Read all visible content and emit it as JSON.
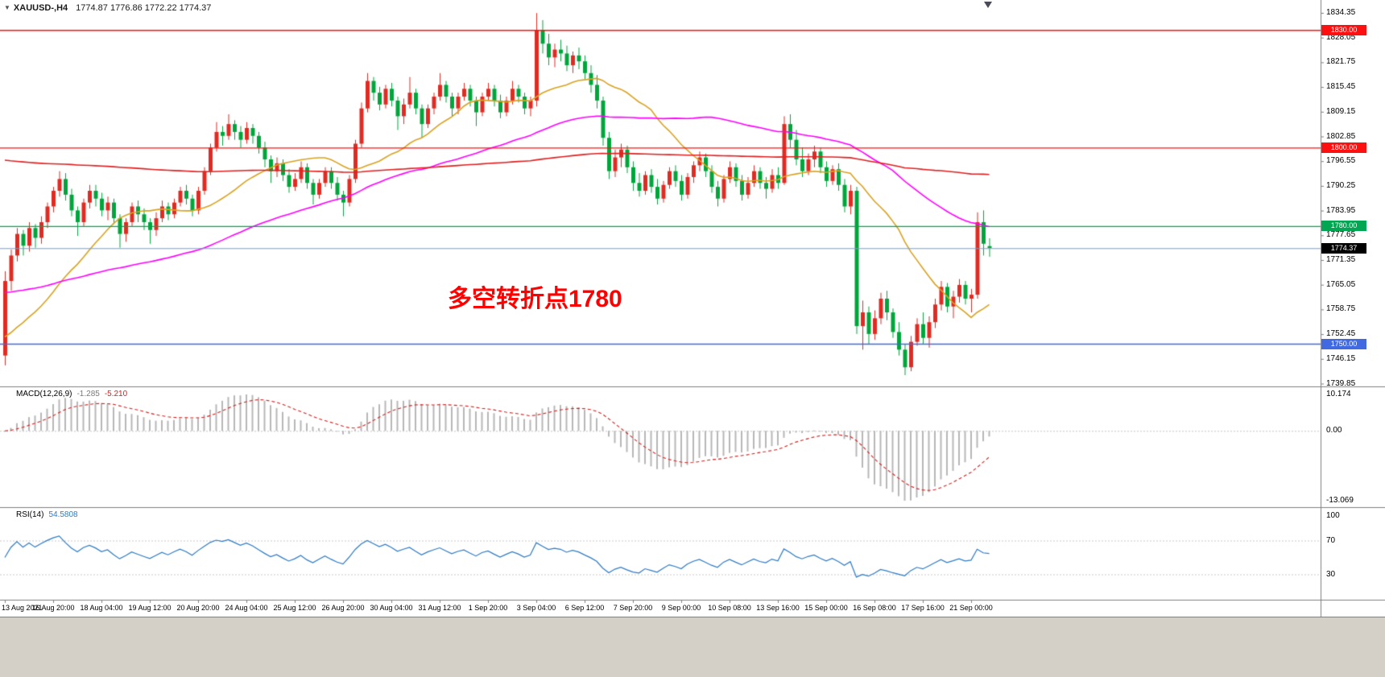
{
  "title": {
    "dropdown_icon": "▼",
    "symbol_period": "XAUUSD-,H4",
    "ohlc_text": "1774.87 1776.86 1772.22 1774.37"
  },
  "colors": {
    "bull": "#e02b22",
    "bear": "#00a63c",
    "background": "#ffffff",
    "separator": "#808080",
    "grid_dotted": "#c8c8c8",
    "axis_text": "#000000",
    "bottom_strip": "#d4d0c8"
  },
  "chart_data": {
    "type": "candlestick",
    "symbol": "XAUUSD-",
    "timeframe": "H4",
    "current_candle": {
      "open": 1774.87,
      "high": 1776.86,
      "low": 1772.22,
      "close": 1774.37
    },
    "price_axis": {
      "top": 1834.35,
      "step": 6.3,
      "labels": [
        "1834.35",
        "1828.05",
        "1821.75",
        "1815.45",
        "1809.15",
        "1802.85",
        "1796.55",
        "1790.25",
        "1783.95",
        "1777.65",
        "1771.35",
        "1765.05",
        "1758.75",
        "1752.45",
        "1746.15",
        "1739.85"
      ]
    },
    "time_axis": {
      "candles_per_label": 8,
      "labels": [
        "13 Aug 2021",
        "16 Aug 20:00",
        "18 Aug 04:00",
        "19 Aug 12:00",
        "20 Aug 20:00",
        "24 Aug 04:00",
        "25 Aug 12:00",
        "26 Aug 20:00",
        "30 Aug 04:00",
        "31 Aug 12:00",
        "1 Sep 20:00",
        "3 Sep 04:00",
        "6 Sep 12:00",
        "7 Sep 20:00",
        "9 Sep 00:00",
        "10 Sep 08:00",
        "13 Sep 16:00",
        "15 Sep 00:00",
        "16 Sep 08:00",
        "17 Sep 16:00",
        "21 Sep 00:00"
      ]
    },
    "horizontal_lines": [
      {
        "price": 1830.0,
        "label": "1830.00",
        "color": "#fe1010"
      },
      {
        "price": 1800.0,
        "label": "1800.00",
        "color": "#fe1010"
      },
      {
        "price": 1780.0,
        "label": "1780.00",
        "color": "#00a651"
      },
      {
        "price": 1750.0,
        "label": "1750.00",
        "color": "#4169e1"
      }
    ],
    "bid_line": {
      "price": 1774.37,
      "label": "1774.37",
      "line_color": "#7f9db9",
      "label_bg": "#000000"
    },
    "moving_averages": [
      {
        "name": "ma-fast",
        "period": 20,
        "start_value": 1751,
        "color": "#d9a321"
      },
      {
        "name": "ma-mid",
        "period": 60,
        "start_value": 1763,
        "color": "#ff00ff"
      },
      {
        "name": "ma-slow",
        "period": 150,
        "start_value": 1797,
        "color": "#e02020"
      }
    ],
    "annotation": {
      "text": "多空转折点1780",
      "color": "#ff0000"
    },
    "indicators": {
      "macd": {
        "title": "MACD(12,26,9)",
        "value_main": "-1.285",
        "value_signal": "-5.210",
        "fast": 12,
        "slow": 26,
        "signal": 9,
        "histogram_color": "#b8b8b8",
        "signal_color": "#d42020",
        "axis_labels": [
          "10.174",
          "0.00",
          "-13.069"
        ]
      },
      "rsi": {
        "title": "RSI(14)",
        "value": "54.5808",
        "period": 14,
        "line_color": "#2e7bc4",
        "levels": [
          70,
          30
        ],
        "axis_labels": [
          "100",
          "70",
          "30"
        ]
      }
    },
    "candles": [
      [
        1747,
        1768.5,
        1744.5,
        1766
      ],
      [
        1766,
        1774,
        1763.5,
        1772.5
      ],
      [
        1772.5,
        1779.5,
        1771,
        1778
      ],
      [
        1778,
        1779,
        1772.5,
        1775
      ],
      [
        1775,
        1781,
        1773.5,
        1779.5
      ],
      [
        1779.5,
        1780.5,
        1774.5,
        1777
      ],
      [
        1777,
        1782.5,
        1775.5,
        1781
      ],
      [
        1781,
        1786,
        1779.5,
        1785
      ],
      [
        1785,
        1790,
        1783.5,
        1789
      ],
      [
        1789,
        1794,
        1787.5,
        1792
      ],
      [
        1792,
        1793.5,
        1786.5,
        1788
      ],
      [
        1788,
        1789.5,
        1782.5,
        1784
      ],
      [
        1784,
        1785,
        1777.5,
        1781
      ],
      [
        1781,
        1787,
        1780,
        1786
      ],
      [
        1786,
        1790.5,
        1784.5,
        1789
      ],
      [
        1789,
        1790.5,
        1785,
        1787
      ],
      [
        1787,
        1788.5,
        1782.5,
        1784
      ],
      [
        1784,
        1787.5,
        1781.5,
        1786
      ],
      [
        1786,
        1787,
        1780.5,
        1782
      ],
      [
        1782,
        1783,
        1774.5,
        1778
      ],
      [
        1778,
        1782,
        1776,
        1781
      ],
      [
        1781,
        1786,
        1780,
        1785
      ],
      [
        1785,
        1786.5,
        1781,
        1783
      ],
      [
        1783,
        1784.5,
        1779,
        1781
      ],
      [
        1781,
        1782,
        1775.5,
        1779
      ],
      [
        1779,
        1783.5,
        1777.5,
        1782
      ],
      [
        1782,
        1786.5,
        1781,
        1785
      ],
      [
        1785,
        1786,
        1781.5,
        1783
      ],
      [
        1783,
        1787,
        1782,
        1786
      ],
      [
        1786,
        1790,
        1785,
        1789
      ],
      [
        1789,
        1790.5,
        1785.5,
        1787
      ],
      [
        1787,
        1788,
        1782.5,
        1784
      ],
      [
        1784,
        1790,
        1783,
        1789
      ],
      [
        1789,
        1795,
        1788,
        1794
      ],
      [
        1794,
        1801,
        1793,
        1800
      ],
      [
        1800,
        1806.5,
        1799,
        1804
      ],
      [
        1804,
        1805.5,
        1800.5,
        1803
      ],
      [
        1803,
        1808.5,
        1802,
        1806
      ],
      [
        1806,
        1807,
        1802,
        1804
      ],
      [
        1804,
        1805.5,
        1800,
        1802
      ],
      [
        1802,
        1806.5,
        1801,
        1805
      ],
      [
        1805,
        1806,
        1801,
        1803
      ],
      [
        1803,
        1804,
        1798.5,
        1800
      ],
      [
        1800,
        1801.5,
        1795,
        1797
      ],
      [
        1797,
        1798,
        1791,
        1794
      ],
      [
        1794,
        1797.5,
        1792.5,
        1796
      ],
      [
        1796,
        1797,
        1791.5,
        1793
      ],
      [
        1793,
        1794.5,
        1788.5,
        1790
      ],
      [
        1790,
        1793.5,
        1789,
        1792
      ],
      [
        1792,
        1796.5,
        1791,
        1795
      ],
      [
        1795,
        1796,
        1789.5,
        1791
      ],
      [
        1791,
        1792,
        1785.5,
        1788
      ],
      [
        1788,
        1792,
        1787,
        1791
      ],
      [
        1791,
        1795,
        1790,
        1794
      ],
      [
        1794,
        1795,
        1789.5,
        1791
      ],
      [
        1791,
        1792.5,
        1786.5,
        1788
      ],
      [
        1788,
        1789,
        1782.5,
        1786
      ],
      [
        1786,
        1793,
        1785,
        1792
      ],
      [
        1792,
        1802,
        1791,
        1801
      ],
      [
        1801,
        1811.5,
        1800,
        1810
      ],
      [
        1810,
        1819,
        1809,
        1817
      ],
      [
        1817,
        1818,
        1812,
        1814
      ],
      [
        1814,
        1815.5,
        1809.5,
        1811
      ],
      [
        1811,
        1816,
        1810,
        1815
      ],
      [
        1815,
        1816.5,
        1810.5,
        1812
      ],
      [
        1812,
        1813,
        1804.5,
        1808
      ],
      [
        1808,
        1812.5,
        1806,
        1811
      ],
      [
        1811,
        1818,
        1810,
        1814
      ],
      [
        1814,
        1815,
        1808.5,
        1810
      ],
      [
        1810,
        1811,
        1802.5,
        1806
      ],
      [
        1806,
        1811,
        1805,
        1810
      ],
      [
        1810,
        1814,
        1808.5,
        1813
      ],
      [
        1813,
        1819,
        1812,
        1816
      ],
      [
        1816,
        1817,
        1811.5,
        1813
      ],
      [
        1813,
        1814,
        1808,
        1810
      ],
      [
        1810,
        1814,
        1808.5,
        1813
      ],
      [
        1813,
        1816.5,
        1812,
        1815
      ],
      [
        1815,
        1816,
        1810.5,
        1812
      ],
      [
        1812,
        1813,
        1805.5,
        1809
      ],
      [
        1809,
        1814,
        1808,
        1813
      ],
      [
        1813,
        1816.5,
        1812,
        1815
      ],
      [
        1815,
        1816,
        1810.5,
        1812
      ],
      [
        1812,
        1813.5,
        1807.5,
        1809
      ],
      [
        1809,
        1813,
        1808,
        1812
      ],
      [
        1812,
        1817,
        1811,
        1815
      ],
      [
        1815,
        1816,
        1811.5,
        1813
      ],
      [
        1813,
        1814,
        1808.5,
        1810
      ],
      [
        1810,
        1813,
        1808,
        1812
      ],
      [
        1812,
        1834.3,
        1810.5,
        1830
      ],
      [
        1830,
        1832.5,
        1824,
        1826.5
      ],
      [
        1826.5,
        1829,
        1821,
        1823
      ],
      [
        1823,
        1826.5,
        1820.5,
        1825
      ],
      [
        1825,
        1827.5,
        1822,
        1824
      ],
      [
        1824,
        1826,
        1819.5,
        1821
      ],
      [
        1821,
        1824.5,
        1819,
        1823.5
      ],
      [
        1823.5,
        1825.5,
        1820,
        1822
      ],
      [
        1822,
        1823.5,
        1817.5,
        1819
      ],
      [
        1819,
        1821,
        1814,
        1816
      ],
      [
        1816,
        1818.5,
        1810,
        1812
      ],
      [
        1812,
        1813,
        1800.5,
        1802.5
      ],
      [
        1802.5,
        1804,
        1792,
        1794
      ],
      [
        1794,
        1799.5,
        1792.5,
        1797.5
      ],
      [
        1797.5,
        1801,
        1795,
        1799.5
      ],
      [
        1799.5,
        1800.5,
        1793.5,
        1795
      ],
      [
        1795,
        1796.5,
        1789,
        1791
      ],
      [
        1791,
        1793.5,
        1787.5,
        1789
      ],
      [
        1789,
        1794,
        1788,
        1793
      ],
      [
        1793,
        1794.5,
        1788.5,
        1790
      ],
      [
        1790,
        1792,
        1785.5,
        1787
      ],
      [
        1787,
        1791.5,
        1786,
        1790.5
      ],
      [
        1790.5,
        1795,
        1789.5,
        1794
      ],
      [
        1794,
        1795.5,
        1790,
        1791.5
      ],
      [
        1791.5,
        1793,
        1786.5,
        1788
      ],
      [
        1788,
        1793.5,
        1787,
        1792.5
      ],
      [
        1792.5,
        1796.5,
        1791,
        1795.5
      ],
      [
        1795.5,
        1799,
        1794,
        1797.5
      ],
      [
        1797.5,
        1798.5,
        1792.5,
        1794
      ],
      [
        1794,
        1795.5,
        1788.5,
        1790
      ],
      [
        1790,
        1791.5,
        1785,
        1787
      ],
      [
        1787,
        1793,
        1786,
        1792
      ],
      [
        1792,
        1796.5,
        1791,
        1795
      ],
      [
        1795,
        1796,
        1790,
        1791.5
      ],
      [
        1791.5,
        1793,
        1786.5,
        1788
      ],
      [
        1788,
        1792.5,
        1787,
        1791
      ],
      [
        1791,
        1795.5,
        1790,
        1794
      ],
      [
        1794,
        1795,
        1789.5,
        1791
      ],
      [
        1791,
        1792.5,
        1787,
        1789.5
      ],
      [
        1789.5,
        1794.5,
        1788.5,
        1793
      ],
      [
        1793,
        1795,
        1789.5,
        1791
      ],
      [
        1791,
        1808,
        1790.5,
        1806
      ],
      [
        1806,
        1808.5,
        1800,
        1802
      ],
      [
        1802,
        1804.5,
        1795.5,
        1797
      ],
      [
        1797,
        1800,
        1792.5,
        1794
      ],
      [
        1794,
        1798.5,
        1793,
        1797
      ],
      [
        1797,
        1800.5,
        1795,
        1799
      ],
      [
        1799,
        1800,
        1793.5,
        1795
      ],
      [
        1795,
        1796.5,
        1790,
        1791.5
      ],
      [
        1791.5,
        1795.5,
        1790.5,
        1794.5
      ],
      [
        1794.5,
        1796,
        1789,
        1790.5
      ],
      [
        1790.5,
        1792,
        1783.5,
        1785
      ],
      [
        1785,
        1790.5,
        1783,
        1789
      ],
      [
        1789,
        1790,
        1752.5,
        1754.5
      ],
      [
        1754.5,
        1761,
        1748.5,
        1758
      ],
      [
        1758,
        1759.5,
        1750,
        1752.5
      ],
      [
        1752.5,
        1758.5,
        1751,
        1756.5
      ],
      [
        1756.5,
        1763,
        1755,
        1761.5
      ],
      [
        1761.5,
        1763.5,
        1756,
        1758
      ],
      [
        1758,
        1759,
        1751.5,
        1753
      ],
      [
        1753,
        1755.5,
        1747,
        1748.5
      ],
      [
        1748.5,
        1750,
        1742,
        1744
      ],
      [
        1744,
        1752,
        1743,
        1750.5
      ],
      [
        1750.5,
        1756.5,
        1749.5,
        1755
      ],
      [
        1755,
        1758,
        1750,
        1751.5
      ],
      [
        1751.5,
        1757,
        1749,
        1755.5
      ],
      [
        1755.5,
        1761.5,
        1754,
        1760
      ],
      [
        1760,
        1766,
        1758.5,
        1764.5
      ],
      [
        1764.5,
        1765.5,
        1758,
        1759.5
      ],
      [
        1759.5,
        1763.5,
        1756.5,
        1762
      ],
      [
        1762,
        1766.5,
        1760.5,
        1765
      ],
      [
        1765,
        1766,
        1760,
        1761.5
      ],
      [
        1761.5,
        1764,
        1758,
        1762.5
      ],
      [
        1762.5,
        1783.5,
        1761.5,
        1781
      ],
      [
        1781,
        1784,
        1772.5,
        1775.5
      ],
      [
        1774.9,
        1776.9,
        1772.2,
        1774.4
      ]
    ]
  }
}
